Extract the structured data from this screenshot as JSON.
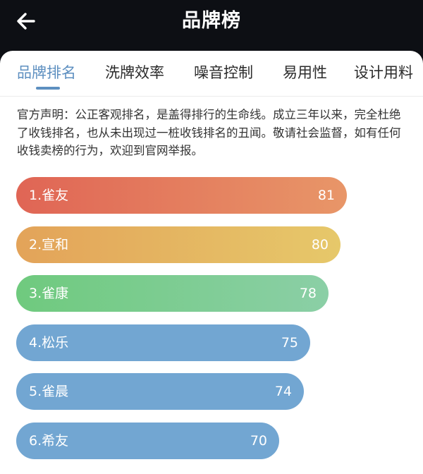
{
  "header": {
    "title": "品牌榜",
    "back_icon": "arrow-left-icon"
  },
  "tabs": [
    {
      "label": "品牌排名",
      "active": true
    },
    {
      "label": "洗牌效率",
      "active": false
    },
    {
      "label": "噪音控制",
      "active": false
    },
    {
      "label": "易用性",
      "active": false
    },
    {
      "label": "设计用料",
      "active": false
    }
  ],
  "notice": "官方声明：公正客观排名，是盖得排行的生命线。成立三年以来，完全杜绝了收钱排名，也从未出现过一桩收钱排名的丑闻。敬请社会监督，如有任何收钱卖榜的行为，欢迎到官网举报。",
  "ranking": [
    {
      "label": "1.雀友",
      "score": 81,
      "color_start": "#e06555",
      "color_end": "#e89668"
    },
    {
      "label": "2.宣和",
      "score": 80,
      "color_start": "#e3a359",
      "color_end": "#e6c86a"
    },
    {
      "label": "3.雀康",
      "score": 78,
      "color_start": "#6fca7e",
      "color_end": "#8bcfa6"
    },
    {
      "label": "4.松乐",
      "score": 75,
      "color_start": "#72a6d2",
      "color_end": "#72a6d2"
    },
    {
      "label": "5.雀晨",
      "score": 74,
      "color_start": "#72a6d2",
      "color_end": "#72a6d2"
    },
    {
      "label": "6.希友",
      "score": 70,
      "color_start": "#72a6d2",
      "color_end": "#72a6d2"
    }
  ]
}
